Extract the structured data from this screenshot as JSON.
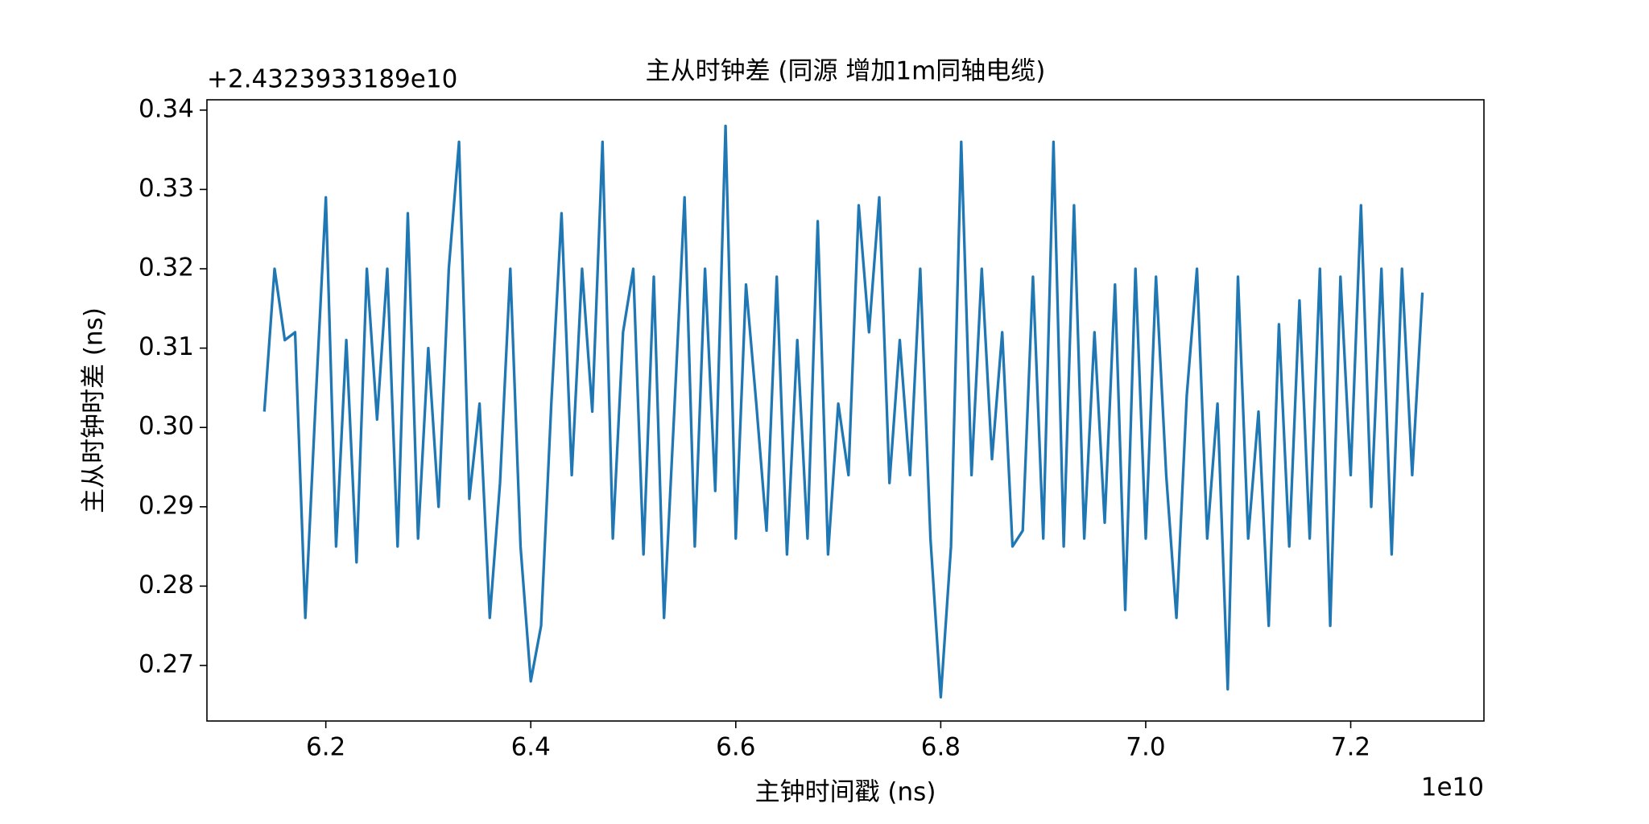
{
  "chart_data": {
    "type": "line",
    "title": "主从时钟差 (同源 增加1m同轴电缆)",
    "xlabel": "主钟时间戳 (ns)",
    "ylabel": "主从时钟时差 (ns)",
    "x_offset": "1e10",
    "y_offset": "+2.4323933189e10",
    "x": [
      6.14,
      6.15,
      6.16,
      6.17,
      6.18,
      6.19,
      6.2,
      6.21,
      6.22,
      6.23,
      6.24,
      6.25,
      6.26,
      6.27,
      6.28,
      6.29,
      6.3,
      6.31,
      6.32,
      6.33,
      6.34,
      6.35,
      6.36,
      6.37,
      6.38,
      6.39,
      6.4,
      6.41,
      6.42,
      6.43,
      6.44,
      6.45,
      6.46,
      6.47,
      6.48,
      6.49,
      6.5,
      6.51,
      6.52,
      6.53,
      6.54,
      6.55,
      6.56,
      6.57,
      6.58,
      6.59,
      6.6,
      6.61,
      6.62,
      6.63,
      6.64,
      6.65,
      6.66,
      6.67,
      6.68,
      6.69,
      6.7,
      6.71,
      6.72,
      6.73,
      6.74,
      6.75,
      6.76,
      6.77,
      6.78,
      6.79,
      6.8,
      6.81,
      6.82,
      6.83,
      6.84,
      6.85,
      6.86,
      6.87,
      6.88,
      6.89,
      6.9,
      6.91,
      6.92,
      6.93,
      6.94,
      6.95,
      6.96,
      6.97,
      6.98,
      6.99,
      7.0,
      7.01,
      7.02,
      7.03,
      7.04,
      7.05,
      7.06,
      7.07,
      7.08,
      7.09,
      7.1,
      7.11,
      7.12,
      7.13,
      7.14,
      7.15,
      7.16,
      7.17,
      7.18,
      7.19,
      7.2,
      7.21,
      7.22,
      7.23,
      7.24,
      7.25,
      7.26,
      7.27
    ],
    "series": [
      {
        "name": "主从时钟差",
        "color": "#1f77b4",
        "values": [
          0.302,
          0.32,
          0.311,
          0.312,
          0.276,
          0.303,
          0.329,
          0.285,
          0.311,
          0.283,
          0.32,
          0.301,
          0.32,
          0.285,
          0.327,
          0.286,
          0.31,
          0.29,
          0.32,
          0.336,
          0.291,
          0.303,
          0.276,
          0.293,
          0.32,
          0.285,
          0.268,
          0.275,
          0.303,
          0.327,
          0.294,
          0.32,
          0.302,
          0.336,
          0.286,
          0.312,
          0.32,
          0.284,
          0.319,
          0.276,
          0.302,
          0.329,
          0.285,
          0.32,
          0.292,
          0.338,
          0.286,
          0.318,
          0.303,
          0.287,
          0.319,
          0.284,
          0.311,
          0.286,
          0.326,
          0.284,
          0.303,
          0.294,
          0.328,
          0.312,
          0.329,
          0.293,
          0.311,
          0.294,
          0.32,
          0.286,
          0.266,
          0.285,
          0.336,
          0.294,
          0.32,
          0.296,
          0.312,
          0.285,
          0.287,
          0.319,
          0.286,
          0.336,
          0.285,
          0.328,
          0.286,
          0.312,
          0.288,
          0.318,
          0.277,
          0.32,
          0.286,
          0.319,
          0.294,
          0.276,
          0.304,
          0.32,
          0.286,
          0.303,
          0.267,
          0.319,
          0.286,
          0.302,
          0.275,
          0.313,
          0.285,
          0.316,
          0.286,
          0.32,
          0.275,
          0.319,
          0.294,
          0.328,
          0.29,
          0.32,
          0.284,
          0.32,
          0.294,
          0.317
        ]
      }
    ],
    "xlim": [
      6.084,
      7.33
    ],
    "ylim": [
      0.263,
      0.3413
    ],
    "xticks": [
      6.2,
      6.4,
      6.6,
      6.8,
      {
        "value": 7.0,
        "label": "7.0"
      },
      7.2
    ],
    "yticks": [
      0.27,
      0.28,
      0.29,
      {
        "value": 0.3,
        "label": "0.30"
      },
      0.31,
      0.32,
      0.33,
      0.34
    ]
  }
}
